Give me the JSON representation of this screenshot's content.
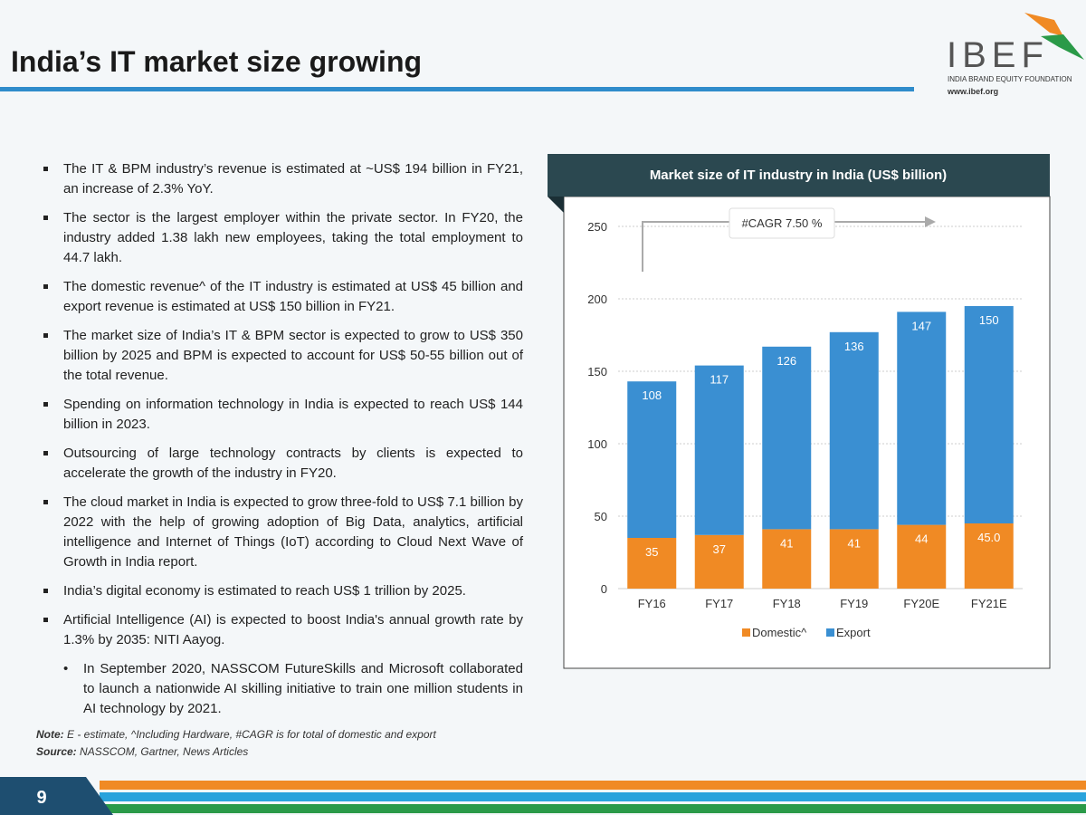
{
  "header": {
    "title": "India’s IT market size growing",
    "logo": "IBEF",
    "logo_subtitle": "INDIA BRAND EQUITY FOUNDATION",
    "logo_url": "www.ibef.org"
  },
  "bullets": [
    "The IT & BPM industry’s revenue is estimated at ~US$ 194 billion in FY21, an increase of 2.3% YoY.",
    "The sector is the largest employer within the private sector. In FY20, the industry added 1.38 lakh new employees, taking the total employment to 44.7 lakh.",
    "The domestic revenue^ of the IT industry is estimated at US$ 45 billion and export revenue is estimated at US$ 150 billion in FY21.",
    "The market size of India’s IT & BPM sector is expected to grow to US$ 350 billion by 2025 and BPM is expected to account for US$ 50-55 billion out of the total revenue.",
    "Spending on information technology in India is expected to reach US$ 144 billion in 2023.",
    "Outsourcing of large technology contracts by clients is expected to accelerate the growth of the industry in FY20.",
    "The cloud market in India is expected to grow three-fold to US$ 7.1 billion by 2022 with the help of growing adoption of Big Data, analytics, artificial intelligence and Internet of Things (IoT) according to Cloud Next Wave of Growth in India report.",
    "India’s digital economy is estimated to reach US$ 1 trillion by 2025.",
    "Artificial Intelligence (AI) is expected to boost India's annual growth rate by 1.3% by 2035: NITI Aayog."
  ],
  "sub_bullet": "In September 2020, NASSCOM FutureSkills and Microsoft collaborated to launch a nationwide AI skilling initiative to train one million students in AI technology by 2021.",
  "note": {
    "label": "Note:",
    "text": "E - estimate, ^Including Hardware, #CAGR is for total of domestic and export"
  },
  "source": {
    "label": "Source:",
    "text": "NASSCOM, Gartner, News Articles"
  },
  "page_number": "9",
  "chart_data": {
    "type": "stacked_bar",
    "title": "Market size of IT industry in India (US$ billion)",
    "annotation": "#CAGR 7.50 %",
    "categories": [
      "FY16",
      "FY17",
      "FY18",
      "FY19",
      "FY20E",
      "FY21E"
    ],
    "series": [
      {
        "name": "Domestic^",
        "color": "#f08a24",
        "values": [
          35,
          37,
          41,
          41,
          44,
          45
        ],
        "value_labels": [
          "35",
          "37",
          "41",
          "41",
          "44",
          "45.0"
        ]
      },
      {
        "name": "Export",
        "color": "#3a8fd2",
        "values": [
          108,
          117,
          126,
          136,
          147,
          150
        ]
      }
    ],
    "ylim": [
      0,
      250
    ],
    "yticks": [
      0,
      50,
      100,
      150,
      200,
      250
    ],
    "grid": true,
    "legend": "bottom"
  }
}
